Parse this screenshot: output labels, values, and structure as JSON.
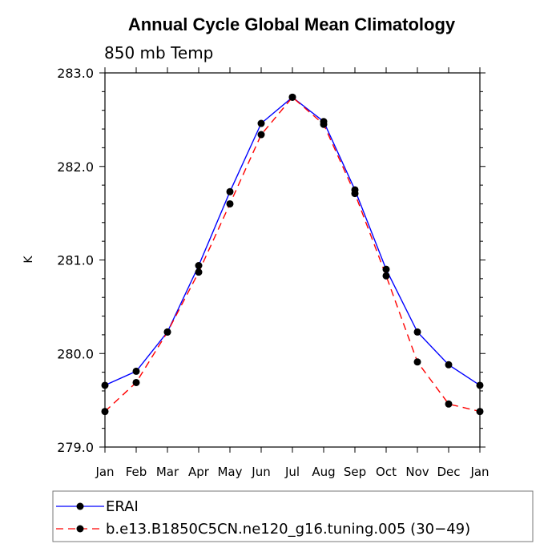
{
  "chart_data": {
    "type": "line",
    "title": "Annual Cycle Global Mean Climatology",
    "subtitle": "850 mb Temp",
    "xlabel": "",
    "ylabel": "K",
    "categories": [
      "Jan",
      "Feb",
      "Mar",
      "Apr",
      "May",
      "Jun",
      "Jul",
      "Aug",
      "Sep",
      "Oct",
      "Nov",
      "Dec",
      "Jan"
    ],
    "ylim": [
      279.0,
      283.0
    ],
    "yticks": [
      "279.0",
      "280.0",
      "281.0",
      "282.0",
      "283.0"
    ],
    "grid": false,
    "legend_position": "bottom",
    "series": [
      {
        "name": "ERAI",
        "color": "#0000ff",
        "line_style": "solid",
        "marker": "filled-circle",
        "values": [
          279.66,
          279.81,
          280.23,
          280.94,
          281.73,
          282.46,
          282.74,
          282.48,
          281.75,
          280.9,
          280.23,
          279.88,
          279.66
        ]
      },
      {
        "name": "b.e13.B1850C5CN.ne120_g16.tuning.005 (30−49)",
        "color": "#ff0000",
        "line_style": "dashed",
        "marker": "filled-circle",
        "values": [
          279.38,
          279.69,
          280.23,
          280.87,
          281.6,
          282.34,
          282.74,
          282.45,
          281.71,
          280.83,
          279.91,
          279.46,
          279.38
        ]
      }
    ]
  }
}
